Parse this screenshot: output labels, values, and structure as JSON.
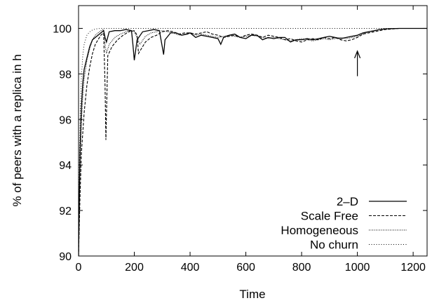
{
  "chart_data": {
    "type": "line",
    "xlabel": "Time",
    "ylabel": "% of peers with a replica in h",
    "xlim": [
      0,
      1250
    ],
    "ylim": [
      90,
      101
    ],
    "xticks": [
      0,
      200,
      400,
      600,
      800,
      1000,
      1200
    ],
    "yticks": [
      90,
      92,
      94,
      96,
      98,
      100
    ],
    "grid": false,
    "legend_position": "bottom-right",
    "annotation": {
      "type": "arrow",
      "x": 1000,
      "y_from": 97.9,
      "y_to": 99.0
    },
    "series": [
      {
        "name": "2–D",
        "style": "solid",
        "points": [
          [
            0,
            90
          ],
          [
            5,
            94.5
          ],
          [
            10,
            96.5
          ],
          [
            15,
            97.6
          ],
          [
            20,
            98.2
          ],
          [
            30,
            98.7
          ],
          [
            40,
            99.2
          ],
          [
            50,
            99.5
          ],
          [
            60,
            99.6
          ],
          [
            70,
            99.7
          ],
          [
            80,
            99.8
          ],
          [
            90,
            99.9
          ],
          [
            95,
            99.6
          ],
          [
            100,
            99.4
          ],
          [
            110,
            99.85
          ],
          [
            130,
            99.9
          ],
          [
            150,
            99.9
          ],
          [
            170,
            99.95
          ],
          [
            190,
            99.9
          ],
          [
            195,
            99.3
          ],
          [
            200,
            98.6
          ],
          [
            210,
            99.5
          ],
          [
            230,
            99.85
          ],
          [
            250,
            99.9
          ],
          [
            270,
            99.95
          ],
          [
            290,
            99.9
          ],
          [
            300,
            99.2
          ],
          [
            305,
            98.85
          ],
          [
            310,
            99.5
          ],
          [
            330,
            99.8
          ],
          [
            350,
            99.8
          ],
          [
            370,
            99.7
          ],
          [
            390,
            99.75
          ],
          [
            400,
            99.8
          ],
          [
            420,
            99.6
          ],
          [
            440,
            99.7
          ],
          [
            460,
            99.65
          ],
          [
            480,
            99.6
          ],
          [
            500,
            99.55
          ],
          [
            510,
            99.3
          ],
          [
            520,
            99.6
          ],
          [
            540,
            99.7
          ],
          [
            560,
            99.75
          ],
          [
            580,
            99.6
          ],
          [
            600,
            99.55
          ],
          [
            620,
            99.7
          ],
          [
            640,
            99.7
          ],
          [
            660,
            99.5
          ],
          [
            680,
            99.6
          ],
          [
            700,
            99.55
          ],
          [
            720,
            99.6
          ],
          [
            740,
            99.6
          ],
          [
            760,
            99.4
          ],
          [
            780,
            99.5
          ],
          [
            800,
            99.5
          ],
          [
            820,
            99.55
          ],
          [
            840,
            99.5
          ],
          [
            860,
            99.55
          ],
          [
            880,
            99.6
          ],
          [
            900,
            99.65
          ],
          [
            920,
            99.6
          ],
          [
            940,
            99.55
          ],
          [
            960,
            99.6
          ],
          [
            980,
            99.65
          ],
          [
            1000,
            99.7
          ],
          [
            1020,
            99.8
          ],
          [
            1040,
            99.85
          ],
          [
            1060,
            99.9
          ],
          [
            1080,
            99.95
          ],
          [
            1100,
            99.98
          ],
          [
            1150,
            100
          ],
          [
            1250,
            100
          ]
        ]
      },
      {
        "name": "Scale Free",
        "style": "dashed",
        "points": [
          [
            0,
            90
          ],
          [
            5,
            92.5
          ],
          [
            10,
            94.5
          ],
          [
            20,
            96.3
          ],
          [
            30,
            97.5
          ],
          [
            40,
            98.3
          ],
          [
            50,
            98.9
          ],
          [
            60,
            99.3
          ],
          [
            70,
            99.5
          ],
          [
            80,
            99.7
          ],
          [
            90,
            99.8
          ],
          [
            95,
            97.5
          ],
          [
            98,
            95.1
          ],
          [
            100,
            96.2
          ],
          [
            105,
            98.8
          ],
          [
            120,
            99.2
          ],
          [
            140,
            99.5
          ],
          [
            160,
            99.7
          ],
          [
            180,
            99.85
          ],
          [
            200,
            99.9
          ],
          [
            210,
            99.7
          ],
          [
            215,
            98.9
          ],
          [
            220,
            99.0
          ],
          [
            240,
            99.4
          ],
          [
            260,
            99.6
          ],
          [
            280,
            99.7
          ],
          [
            300,
            99.85
          ],
          [
            320,
            99.9
          ],
          [
            340,
            99.85
          ],
          [
            360,
            99.75
          ],
          [
            380,
            99.8
          ],
          [
            400,
            99.8
          ],
          [
            420,
            99.75
          ],
          [
            440,
            99.8
          ],
          [
            460,
            99.85
          ],
          [
            480,
            99.75
          ],
          [
            500,
            99.7
          ],
          [
            520,
            99.6
          ],
          [
            540,
            99.65
          ],
          [
            560,
            99.7
          ],
          [
            580,
            99.6
          ],
          [
            600,
            99.7
          ],
          [
            620,
            99.75
          ],
          [
            640,
            99.7
          ],
          [
            660,
            99.6
          ],
          [
            680,
            99.7
          ],
          [
            700,
            99.65
          ],
          [
            720,
            99.6
          ],
          [
            740,
            99.5
          ],
          [
            760,
            99.55
          ],
          [
            780,
            99.45
          ],
          [
            800,
            99.4
          ],
          [
            820,
            99.5
          ],
          [
            840,
            99.55
          ],
          [
            860,
            99.5
          ],
          [
            880,
            99.6
          ],
          [
            900,
            99.55
          ],
          [
            920,
            99.6
          ],
          [
            940,
            99.5
          ],
          [
            960,
            99.45
          ],
          [
            980,
            99.5
          ],
          [
            1000,
            99.6
          ],
          [
            1020,
            99.75
          ],
          [
            1040,
            99.8
          ],
          [
            1060,
            99.85
          ],
          [
            1080,
            99.9
          ],
          [
            1100,
            99.95
          ],
          [
            1150,
            100
          ],
          [
            1250,
            100
          ]
        ]
      },
      {
        "name": "Homogeneous",
        "style": "dotted-dense",
        "points": [
          [
            0,
            90
          ],
          [
            5,
            93.5
          ],
          [
            10,
            95.8
          ],
          [
            15,
            97.0
          ],
          [
            20,
            97.8
          ],
          [
            30,
            98.6
          ],
          [
            40,
            99.1
          ],
          [
            50,
            99.5
          ],
          [
            60,
            99.7
          ],
          [
            70,
            99.8
          ],
          [
            80,
            99.9
          ],
          [
            90,
            99.95
          ],
          [
            95,
            99.3
          ],
          [
            100,
            98.9
          ],
          [
            110,
            99.3
          ],
          [
            130,
            99.6
          ],
          [
            150,
            99.75
          ],
          [
            170,
            99.85
          ],
          [
            190,
            99.9
          ],
          [
            200,
            99.85
          ],
          [
            210,
            99.6
          ],
          [
            220,
            99.3
          ],
          [
            240,
            99.65
          ],
          [
            260,
            99.8
          ],
          [
            280,
            99.85
          ],
          [
            300,
            99.9
          ],
          [
            320,
            99.85
          ],
          [
            340,
            99.8
          ],
          [
            360,
            99.7
          ],
          [
            380,
            99.75
          ],
          [
            400,
            99.8
          ],
          [
            420,
            99.7
          ],
          [
            440,
            99.75
          ],
          [
            460,
            99.7
          ],
          [
            480,
            99.65
          ],
          [
            500,
            99.6
          ],
          [
            520,
            99.65
          ],
          [
            540,
            99.7
          ],
          [
            560,
            99.65
          ],
          [
            580,
            99.6
          ],
          [
            600,
            99.65
          ],
          [
            620,
            99.7
          ],
          [
            640,
            99.65
          ],
          [
            660,
            99.6
          ],
          [
            680,
            99.55
          ],
          [
            700,
            99.6
          ],
          [
            720,
            99.55
          ],
          [
            740,
            99.5
          ],
          [
            760,
            99.45
          ],
          [
            780,
            99.5
          ],
          [
            800,
            99.55
          ],
          [
            820,
            99.5
          ],
          [
            840,
            99.45
          ],
          [
            860,
            99.5
          ],
          [
            880,
            99.55
          ],
          [
            900,
            99.5
          ],
          [
            920,
            99.55
          ],
          [
            940,
            99.6
          ],
          [
            960,
            99.55
          ],
          [
            980,
            99.6
          ],
          [
            1000,
            99.65
          ],
          [
            1020,
            99.75
          ],
          [
            1040,
            99.85
          ],
          [
            1060,
            99.9
          ],
          [
            1080,
            99.95
          ],
          [
            1100,
            99.98
          ],
          [
            1150,
            100
          ],
          [
            1250,
            100
          ]
        ]
      },
      {
        "name": "No churn",
        "style": "dotted-sparse",
        "points": [
          [
            0,
            90
          ],
          [
            3,
            94
          ],
          [
            6,
            96.3
          ],
          [
            10,
            97.8
          ],
          [
            15,
            98.8
          ],
          [
            20,
            99.3
          ],
          [
            30,
            99.7
          ],
          [
            40,
            99.85
          ],
          [
            50,
            99.93
          ],
          [
            60,
            99.97
          ],
          [
            70,
            99.99
          ],
          [
            80,
            100
          ],
          [
            1250,
            100
          ]
        ]
      }
    ]
  }
}
